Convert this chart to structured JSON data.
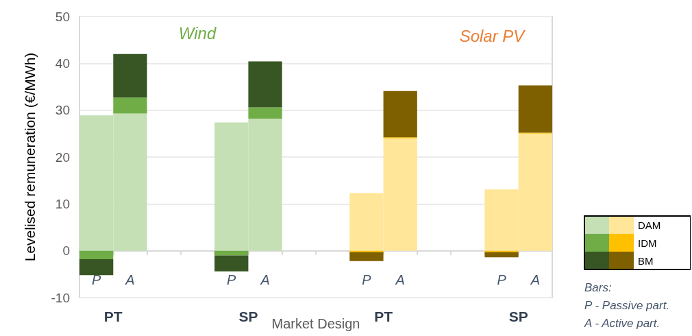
{
  "chart_data": {
    "type": "bar",
    "stacked": true,
    "ylabel": "Levelised remuneration (€/MWh)",
    "xlabel": "Market Design",
    "categories": [
      "P",
      "A",
      null,
      null,
      "P",
      "A",
      null,
      null,
      "P",
      "A",
      null,
      null,
      "P",
      "A"
    ],
    "series": [
      {
        "color": "#c5e0b4",
        "values": [
          28.9,
          29.3,
          null,
          null,
          27.4,
          28.2,
          null,
          null,
          null,
          null,
          null,
          null,
          null,
          null
        ]
      },
      {
        "color": "#70ad47",
        "values": [
          -1.8,
          3.4,
          null,
          null,
          -1.0,
          2.4,
          null,
          null,
          null,
          null,
          null,
          null,
          null,
          null
        ]
      },
      {
        "color": "#375623",
        "values": [
          -3.4,
          9.3,
          null,
          null,
          -3.4,
          9.8,
          null,
          null,
          null,
          null,
          null,
          null,
          null,
          null
        ]
      },
      {
        "name": "DAM",
        "color": "#ffe699",
        "values": [
          null,
          null,
          null,
          null,
          null,
          null,
          null,
          null,
          12.3,
          24.0,
          null,
          null,
          13.1,
          25.0
        ]
      },
      {
        "name": "IDM",
        "color": "#ffc000",
        "values": [
          null,
          null,
          null,
          null,
          null,
          null,
          null,
          null,
          -0.3,
          0.2,
          null,
          null,
          -0.3,
          0.2
        ]
      },
      {
        "name": "BM",
        "color": "#7f6000",
        "values": [
          null,
          null,
          null,
          null,
          null,
          null,
          null,
          null,
          -1.9,
          9.9,
          null,
          null,
          -1.1,
          10.1
        ]
      }
    ],
    "ylim": [
      -10,
      50
    ],
    "yticks": [
      -10,
      0,
      10,
      20,
      30,
      40,
      50
    ],
    "grid": "y",
    "legend": "bottom right",
    "annotations": [
      "Wind",
      "Solar PV",
      "PT",
      "SP",
      "PT",
      "SP",
      "Bars:\nP - Passive part.\nA - Active part."
    ]
  }
}
